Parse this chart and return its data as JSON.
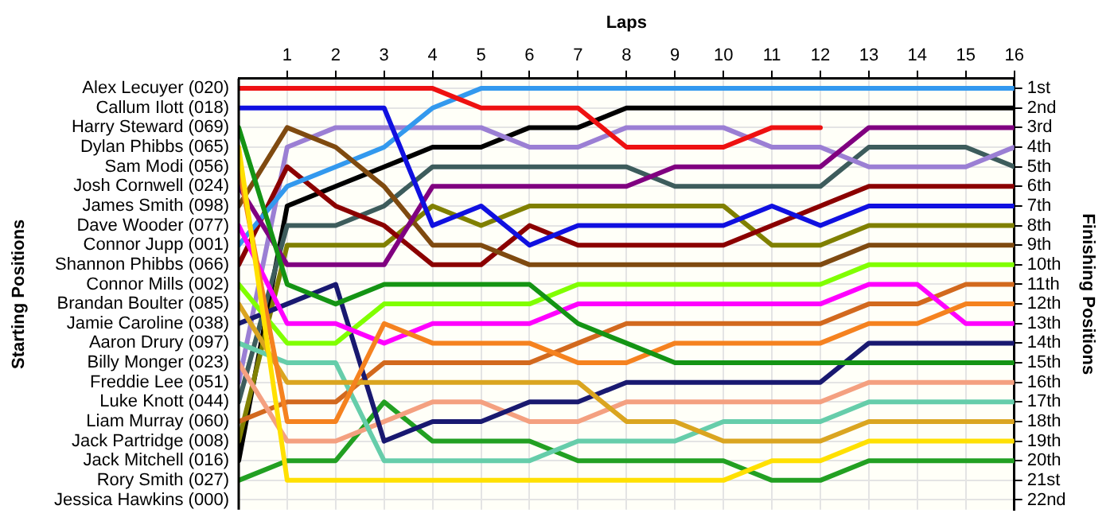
{
  "chart_data": {
    "type": "line",
    "xlabel": "Laps",
    "ylabel": "Finishing Positions",
    "annotations": [
      "Starting Positions",
      "Jessica Hawkins (000)"
    ],
    "x": [
      0,
      1,
      2,
      3,
      4,
      5,
      6,
      7,
      8,
      9,
      10,
      11,
      12,
      13,
      14,
      15,
      16
    ],
    "xlim": [
      0,
      16
    ],
    "xticks": [
      1,
      2,
      3,
      4,
      5,
      6,
      7,
      8,
      9,
      10,
      11,
      12,
      13,
      14,
      15,
      16
    ],
    "ylim": [
      22.5,
      0.5
    ],
    "yticks": [
      {
        "value": 1,
        "label": "1st"
      },
      {
        "value": 2,
        "label": "2nd"
      },
      {
        "value": 3,
        "label": "3rd"
      },
      {
        "value": 4,
        "label": "4th"
      },
      {
        "value": 5,
        "label": "5th"
      },
      {
        "value": 6,
        "label": "6th"
      },
      {
        "value": 7,
        "label": "7th"
      },
      {
        "value": 8,
        "label": "8th"
      },
      {
        "value": 9,
        "label": "9th"
      },
      {
        "value": 10,
        "label": "10th"
      },
      {
        "value": 11,
        "label": "11th"
      },
      {
        "value": 12,
        "label": "12th"
      },
      {
        "value": 13,
        "label": "13th"
      },
      {
        "value": 14,
        "label": "14th"
      },
      {
        "value": 15,
        "label": "15th"
      },
      {
        "value": 16,
        "label": "16th"
      },
      {
        "value": 17,
        "label": "17th"
      },
      {
        "value": 18,
        "label": "18th"
      },
      {
        "value": 19,
        "label": "19th"
      },
      {
        "value": 20,
        "label": "20th"
      },
      {
        "value": 21,
        "label": "21st"
      },
      {
        "value": 22,
        "label": "22nd"
      }
    ],
    "series": [
      {
        "name": "Alex Lecuyer (020)",
        "color": "#ee1111",
        "values": [
          1,
          1,
          1,
          1,
          1,
          2,
          2,
          2,
          4,
          4,
          4,
          3,
          3,
          null,
          null,
          null,
          null
        ]
      },
      {
        "name": "Callum Ilott (018)",
        "color": "#1010e0",
        "values": [
          2,
          2,
          2,
          2,
          8,
          7,
          9,
          8,
          8,
          8,
          8,
          7,
          8,
          7,
          7,
          7,
          7
        ]
      },
      {
        "name": "Harry Steward (069)",
        "color": "#149414",
        "values": [
          3,
          11,
          12,
          11,
          11,
          11,
          11,
          13,
          14,
          15,
          15,
          15,
          15,
          15,
          15,
          15,
          15
        ]
      },
      {
        "name": "Dylan Phibbs (065)",
        "color": "#ffe000",
        "values": [
          4,
          21,
          21,
          21,
          21,
          21,
          21,
          21,
          21,
          21,
          21,
          20,
          20,
          19,
          19,
          19,
          19
        ]
      },
      {
        "name": "Sam Modi (056)",
        "color": "#f5821f",
        "values": [
          5,
          18,
          18,
          13,
          14,
          14,
          14,
          15,
          15,
          14,
          14,
          14,
          14,
          13,
          13,
          12,
          12
        ]
      },
      {
        "name": "Josh Cornwell (024)",
        "color": "#800080",
        "values": [
          6,
          10,
          10,
          10,
          6,
          6,
          6,
          6,
          6,
          5,
          5,
          5,
          5,
          3,
          3,
          3,
          3
        ]
      },
      {
        "name": "James Smith (098)",
        "color": "#7f4a10",
        "values": [
          7,
          3,
          4,
          6,
          9,
          9,
          10,
          10,
          10,
          10,
          10,
          10,
          10,
          9,
          9,
          9,
          9
        ]
      },
      {
        "name": "Dave Wooder (077)",
        "color": "#ff00ff",
        "values": [
          8,
          13,
          13,
          14,
          13,
          13,
          13,
          12,
          12,
          12,
          12,
          12,
          12,
          11,
          11,
          13,
          13
        ]
      },
      {
        "name": "Connor Jupp (001)",
        "color": "#3399ee",
        "values": [
          9,
          6,
          5,
          4,
          2,
          1,
          1,
          1,
          1,
          1,
          1,
          1,
          1,
          1,
          1,
          1,
          1
        ]
      },
      {
        "name": "Shannon Phibbs (066)",
        "color": "#8b0000",
        "values": [
          10,
          5,
          7,
          8,
          10,
          10,
          8,
          9,
          9,
          9,
          9,
          8,
          7,
          6,
          6,
          6,
          6
        ]
      },
      {
        "name": "Connor Mills (002)",
        "color": "#80ff00",
        "values": [
          11,
          14,
          14,
          12,
          12,
          12,
          12,
          11,
          11,
          11,
          11,
          11,
          11,
          10,
          10,
          10,
          10
        ]
      },
      {
        "name": "Brandan Boulter (085)",
        "color": "#daa520",
        "values": [
          12,
          16,
          16,
          16,
          16,
          16,
          16,
          16,
          18,
          18,
          19,
          19,
          19,
          18,
          18,
          18,
          18
        ]
      },
      {
        "name": "Jamie Caroline (038)",
        "color": "#191970",
        "values": [
          13,
          12,
          11,
          19,
          18,
          18,
          17,
          17,
          16,
          16,
          16,
          16,
          16,
          14,
          14,
          14,
          14
        ]
      },
      {
        "name": "Aaron Drury (097)",
        "color": "#66cdaa",
        "values": [
          14,
          15,
          15,
          20,
          20,
          20,
          20,
          19,
          19,
          19,
          18,
          18,
          18,
          17,
          17,
          17,
          17
        ]
      },
      {
        "name": "Billy Monger (023)",
        "color": "#f4a080",
        "values": [
          15,
          19,
          19,
          18,
          17,
          17,
          18,
          18,
          17,
          17,
          17,
          17,
          17,
          16,
          16,
          16,
          16
        ]
      },
      {
        "name": "Freddie Lee (051)",
        "color": "#9b7fd4",
        "values": [
          16,
          4,
          3,
          3,
          3,
          3,
          4,
          4,
          3,
          3,
          3,
          4,
          4,
          5,
          5,
          5,
          4
        ]
      },
      {
        "name": "Luke Knott (044)",
        "color": "#3d5c5c",
        "values": [
          17,
          8,
          8,
          7,
          5,
          5,
          5,
          5,
          5,
          6,
          6,
          6,
          6,
          4,
          4,
          4,
          5
        ]
      },
      {
        "name": "Liam Murray (060)",
        "color": "#d2691e",
        "values": [
          18,
          17,
          17,
          15,
          15,
          15,
          15,
          14,
          13,
          13,
          13,
          13,
          13,
          12,
          12,
          11,
          11
        ]
      },
      {
        "name": "Jack Partridge (008)",
        "color": "#808000",
        "values": [
          19,
          9,
          9,
          9,
          7,
          8,
          7,
          7,
          7,
          7,
          7,
          9,
          9,
          8,
          8,
          8,
          8
        ]
      },
      {
        "name": "Jack Mitchell (016)",
        "color": "#000000",
        "values": [
          20,
          7,
          6,
          5,
          4,
          4,
          3,
          3,
          2,
          2,
          2,
          2,
          2,
          2,
          2,
          2,
          2
        ]
      },
      {
        "name": "Rory Smith (027)",
        "color": "#22a022",
        "values": [
          21,
          20,
          20,
          17,
          19,
          19,
          19,
          20,
          20,
          20,
          20,
          21,
          21,
          20,
          20,
          20,
          20
        ]
      }
    ],
    "grid": true,
    "marker": "none"
  }
}
